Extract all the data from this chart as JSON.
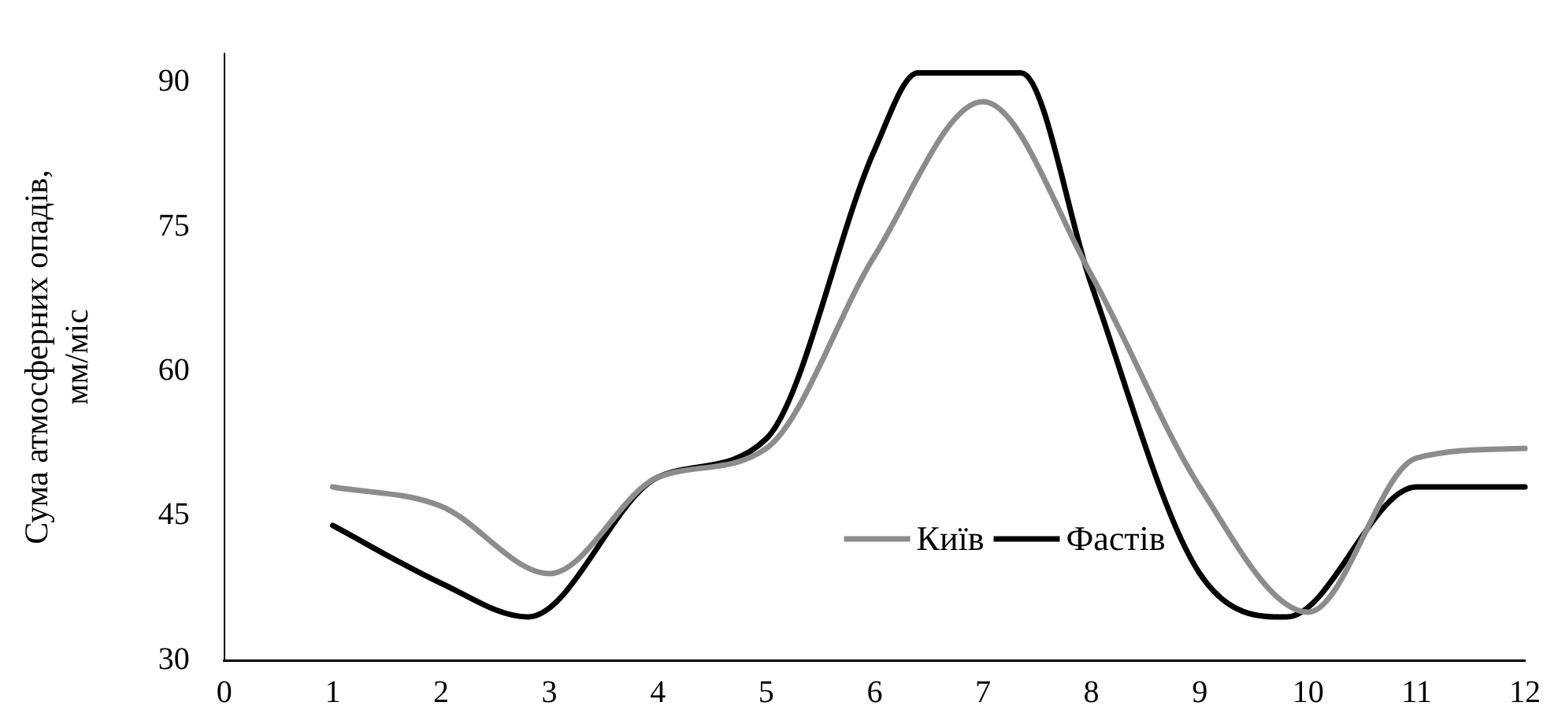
{
  "chart_data": {
    "type": "line",
    "ylabel": "Сума атмосферних опадів, мм/міс",
    "xlim": [
      0,
      12
    ],
    "xticks": [
      0,
      1,
      2,
      3,
      4,
      5,
      6,
      7,
      8,
      9,
      10,
      11,
      12
    ],
    "ylim": [
      30,
      93
    ],
    "yticks": [
      30,
      45,
      60,
      75,
      90
    ],
    "grid": false,
    "legend": "bottom",
    "marker": "none",
    "line_style": "solid",
    "series": [
      {
        "name": "Київ",
        "color": "#8c8c8c",
        "x": [
          1,
          2,
          3,
          4,
          5,
          6,
          7,
          8,
          9,
          10,
          11,
          12
        ],
        "values": [
          48,
          46,
          39,
          49,
          52,
          72,
          88,
          70,
          48,
          35,
          51,
          52
        ]
      },
      {
        "name": "Фастів",
        "color": "#000000",
        "x": [
          1,
          2,
          2.8,
          4,
          5,
          6,
          6.4,
          7.35,
          8,
          9,
          9.8,
          11,
          12
        ],
        "values": [
          44,
          38,
          34.5,
          49,
          53,
          83,
          91,
          91,
          69,
          39,
          34.5,
          48,
          48
        ]
      }
    ]
  }
}
